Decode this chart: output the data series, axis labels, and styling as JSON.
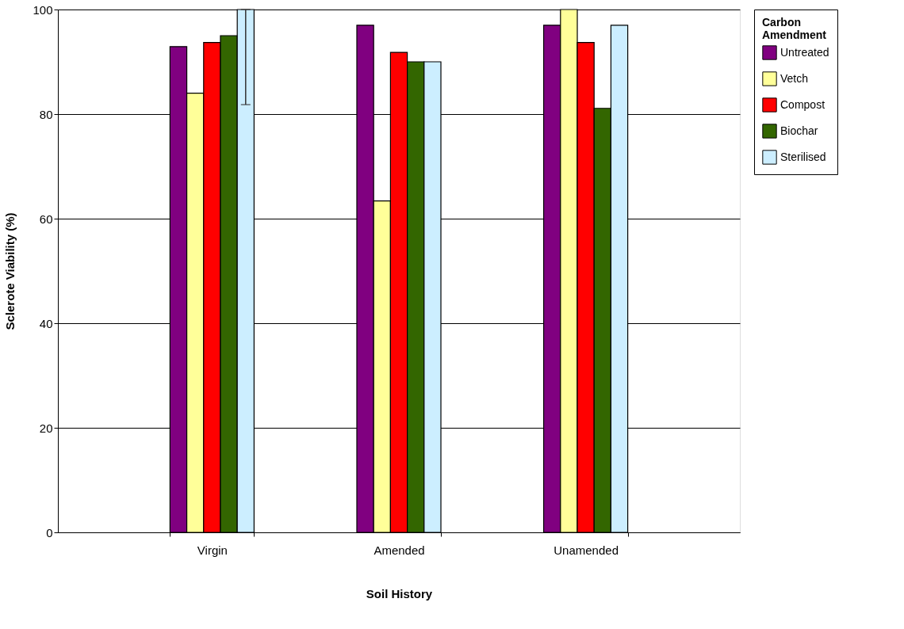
{
  "chart_data": {
    "type": "bar",
    "xlabel": "Soil History",
    "ylabel": "Sclerote Viability (%)",
    "legend_title": "Carbon Amendment",
    "categories": [
      "Virgin",
      "Amended",
      "Unamended"
    ],
    "series": [
      {
        "name": "Untreated",
        "color": "#800080",
        "values": [
          92.9,
          97.0,
          97.0
        ]
      },
      {
        "name": "Vetch",
        "color": "#ffff99",
        "values": [
          84.0,
          63.4,
          100
        ]
      },
      {
        "name": "Compost",
        "color": "#ff0000",
        "values": [
          93.7,
          91.8,
          93.7
        ]
      },
      {
        "name": "Biochar",
        "color": "#336600",
        "values": [
          95.0,
          90.0,
          81.1
        ]
      },
      {
        "name": "Sterilised",
        "color": "#cceeff",
        "values": [
          100,
          90.0,
          97.0
        ],
        "errors": [
          [
            81.8,
            100
          ],
          null,
          null
        ]
      }
    ],
    "ylim": [
      0,
      100
    ],
    "yticks": [
      0,
      20,
      40,
      60,
      80,
      100
    ],
    "grid": "y",
    "legend": "right"
  }
}
